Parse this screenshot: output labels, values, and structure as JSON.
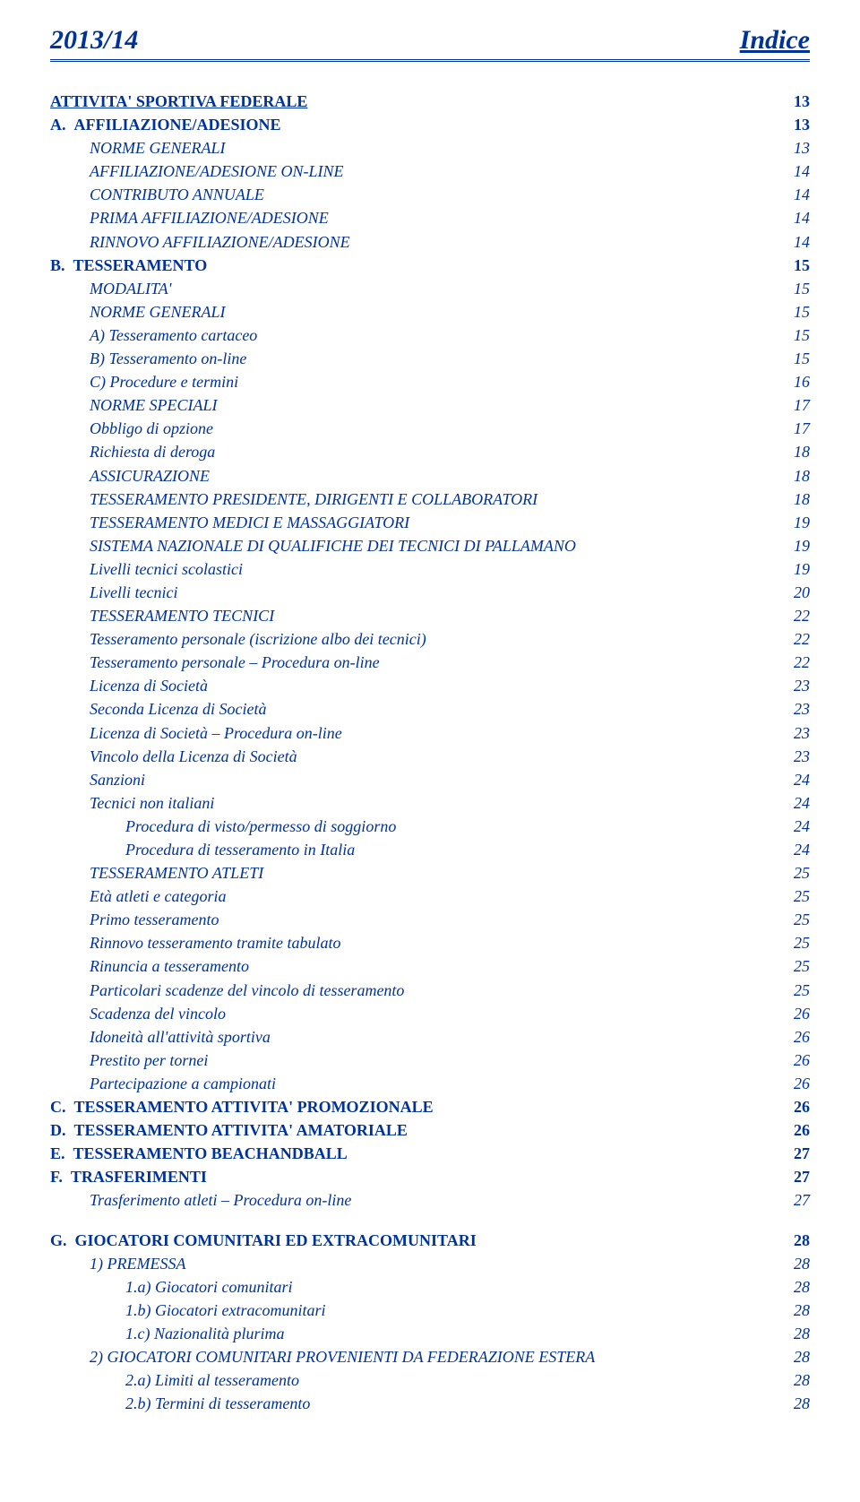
{
  "colors": {
    "text": "#003399",
    "background": "#ffffff",
    "rule": "#003399"
  },
  "typography": {
    "font_family": "Times New Roman",
    "header_fontsize_pt": 22,
    "body_fontsize_pt": 13
  },
  "header": {
    "left": "2013/14",
    "right": "Indice"
  },
  "toc": [
    {
      "indent": 0,
      "style": "section-title",
      "label": "ATTIVITA' SPORTIVA FEDERALE",
      "page": "13",
      "page_style": "bold",
      "gap_before": false
    },
    {
      "indent": 0,
      "style": "bold",
      "letter": "A.",
      "label": "AFFILIAZIONE/ADESIONE",
      "page": "13",
      "page_style": "bold"
    },
    {
      "indent": 1,
      "style": "italic",
      "label": "NORME GENERALI",
      "page": "13",
      "page_style": "italic"
    },
    {
      "indent": 1,
      "style": "italic",
      "label": "AFFILIAZIONE/ADESIONE ON-LINE",
      "page": "14",
      "page_style": "italic"
    },
    {
      "indent": 1,
      "style": "italic",
      "label": "CONTRIBUTO ANNUALE",
      "page": "14",
      "page_style": "italic"
    },
    {
      "indent": 1,
      "style": "italic",
      "label": "PRIMA AFFILIAZIONE/ADESIONE",
      "page": "14",
      "page_style": "italic"
    },
    {
      "indent": 1,
      "style": "italic",
      "label": "RINNOVO AFFILIAZIONE/ADESIONE",
      "page": "14",
      "page_style": "italic"
    },
    {
      "indent": 0,
      "style": "bold",
      "letter": "B.",
      "label": "TESSERAMENTO",
      "page": "15",
      "page_style": "bold"
    },
    {
      "indent": 1,
      "style": "italic",
      "label": "MODALITA'",
      "page": "15",
      "page_style": "italic"
    },
    {
      "indent": 1,
      "style": "italic",
      "label": "NORME GENERALI",
      "page": "15",
      "page_style": "italic"
    },
    {
      "indent": 1,
      "style": "italic",
      "label": "A) Tesseramento cartaceo",
      "page": "15",
      "page_style": "italic"
    },
    {
      "indent": 1,
      "style": "italic",
      "label": "B) Tesseramento on-line",
      "page": "15",
      "page_style": "italic"
    },
    {
      "indent": 1,
      "style": "italic",
      "label": "C) Procedure e termini",
      "page": "16",
      "page_style": "italic"
    },
    {
      "indent": 1,
      "style": "italic",
      "label": "NORME SPECIALI",
      "page": "17",
      "page_style": "italic"
    },
    {
      "indent": 1,
      "style": "italic",
      "label": "Obbligo di opzione",
      "page": "17",
      "page_style": "italic"
    },
    {
      "indent": 1,
      "style": "italic",
      "label": "Richiesta di deroga",
      "page": "18",
      "page_style": "italic"
    },
    {
      "indent": 1,
      "style": "italic",
      "label": "ASSICURAZIONE",
      "page": "18",
      "page_style": "italic"
    },
    {
      "indent": 1,
      "style": "italic",
      "label": "TESSERAMENTO PRESIDENTE, DIRIGENTI E COLLABORATORI",
      "page": "18",
      "page_style": "italic"
    },
    {
      "indent": 1,
      "style": "italic",
      "label": "TESSERAMENTO MEDICI E MASSAGGIATORI",
      "page": "19",
      "page_style": "italic"
    },
    {
      "indent": 1,
      "style": "italic",
      "label": "SISTEMA NAZIONALE DI QUALIFICHE DEI TECNICI DI PALLAMANO",
      "page": "19",
      "page_style": "italic"
    },
    {
      "indent": 1,
      "style": "italic",
      "label": "Livelli tecnici scolastici",
      "page": "19",
      "page_style": "italic"
    },
    {
      "indent": 1,
      "style": "italic",
      "label": "Livelli tecnici",
      "page": "20",
      "page_style": "italic"
    },
    {
      "indent": 1,
      "style": "italic",
      "label": "TESSERAMENTO TECNICI",
      "page": "22",
      "page_style": "italic"
    },
    {
      "indent": 1,
      "style": "italic",
      "label": "Tesseramento personale (iscrizione albo dei tecnici)",
      "page": "22",
      "page_style": "italic"
    },
    {
      "indent": 1,
      "style": "italic",
      "label": "Tesseramento personale – Procedura on-line",
      "page": "22",
      "page_style": "italic"
    },
    {
      "indent": 1,
      "style": "italic",
      "label": "Licenza di Società",
      "page": "23",
      "page_style": "italic"
    },
    {
      "indent": 1,
      "style": "italic",
      "label": "Seconda Licenza di Società",
      "page": "23",
      "page_style": "italic"
    },
    {
      "indent": 1,
      "style": "italic",
      "label": "Licenza di Società – Procedura on-line",
      "page": "23",
      "page_style": "italic"
    },
    {
      "indent": 1,
      "style": "italic",
      "label": "Vincolo della Licenza di Società",
      "page": "23",
      "page_style": "italic"
    },
    {
      "indent": 1,
      "style": "italic",
      "label": "Sanzioni",
      "page": "24",
      "page_style": "italic"
    },
    {
      "indent": 1,
      "style": "italic",
      "label": "Tecnici non italiani",
      "page": "24",
      "page_style": "italic"
    },
    {
      "indent": 2,
      "style": "italic",
      "label": "Procedura di visto/permesso di soggiorno",
      "page": "24",
      "page_style": "italic"
    },
    {
      "indent": 2,
      "style": "italic",
      "label": "Procedura di tesseramento in Italia",
      "page": "24",
      "page_style": "italic"
    },
    {
      "indent": 1,
      "style": "italic",
      "label": "TESSERAMENTO ATLETI",
      "page": "25",
      "page_style": "italic"
    },
    {
      "indent": 1,
      "style": "italic",
      "label": "Età atleti e categoria",
      "page": "25",
      "page_style": "italic"
    },
    {
      "indent": 1,
      "style": "italic",
      "label": "Primo tesseramento",
      "page": "25",
      "page_style": "italic"
    },
    {
      "indent": 1,
      "style": "italic",
      "label": "Rinnovo tesseramento tramite tabulato",
      "page": "25",
      "page_style": "italic"
    },
    {
      "indent": 1,
      "style": "italic",
      "label": "Rinuncia a tesseramento",
      "page": "25",
      "page_style": "italic"
    },
    {
      "indent": 1,
      "style": "italic",
      "label": "Particolari scadenze del vincolo di tesseramento",
      "page": "25",
      "page_style": "italic"
    },
    {
      "indent": 1,
      "style": "italic",
      "label": "Scadenza del vincolo",
      "page": "26",
      "page_style": "italic"
    },
    {
      "indent": 1,
      "style": "italic",
      "label": "Idoneità all'attività sportiva",
      "page": "26",
      "page_style": "italic"
    },
    {
      "indent": 1,
      "style": "italic",
      "label": "Prestito per tornei",
      "page": "26",
      "page_style": "italic"
    },
    {
      "indent": 1,
      "style": "italic",
      "label": "Partecipazione a campionati",
      "page": "26",
      "page_style": "italic"
    },
    {
      "indent": 0,
      "style": "bold",
      "letter": "C.",
      "label": "TESSERAMENTO ATTIVITA' PROMOZIONALE",
      "page": "26",
      "page_style": "bold"
    },
    {
      "indent": 0,
      "style": "bold",
      "letter": "D.",
      "label": "TESSERAMENTO ATTIVITA' AMATORIALE",
      "page": "26",
      "page_style": "bold"
    },
    {
      "indent": 0,
      "style": "bold",
      "letter": "E.",
      "label": "TESSERAMENTO BEACHANDBALL",
      "page": "27",
      "page_style": "bold"
    },
    {
      "indent": 0,
      "style": "bold",
      "letter": "F.",
      "label": "TRASFERIMENTI",
      "page": "27",
      "page_style": "bold"
    },
    {
      "indent": 1,
      "style": "italic",
      "label": "Trasferimento atleti – Procedura on-line",
      "page": "27",
      "page_style": "italic"
    },
    {
      "indent": 0,
      "style": "bold",
      "letter": "G.",
      "label": "GIOCATORI COMUNITARI ED EXTRACOMUNITARI",
      "page": "28",
      "page_style": "bold",
      "gap_before": true
    },
    {
      "indent": 1,
      "style": "italic",
      "label": "1) PREMESSA",
      "page": "28",
      "page_style": "italic"
    },
    {
      "indent": 2,
      "style": "italic",
      "label": "1.a) Giocatori comunitari",
      "page": "28",
      "page_style": "italic"
    },
    {
      "indent": 2,
      "style": "italic",
      "label": "1.b) Giocatori extracomunitari",
      "page": "28",
      "page_style": "italic"
    },
    {
      "indent": 2,
      "style": "italic",
      "label": "1.c) Nazionalità plurima",
      "page": "28",
      "page_style": "italic"
    },
    {
      "indent": 1,
      "style": "italic",
      "label": "2) GIOCATORI COMUNITARI PROVENIENTI DA FEDERAZIONE ESTERA",
      "page": "28",
      "page_style": "italic"
    },
    {
      "indent": 2,
      "style": "italic",
      "label": "2.a) Limiti al tesseramento",
      "page": "28",
      "page_style": "italic"
    },
    {
      "indent": 2,
      "style": "italic",
      "label": "2.b) Termini di tesseramento",
      "page": "28",
      "page_style": "italic"
    }
  ]
}
